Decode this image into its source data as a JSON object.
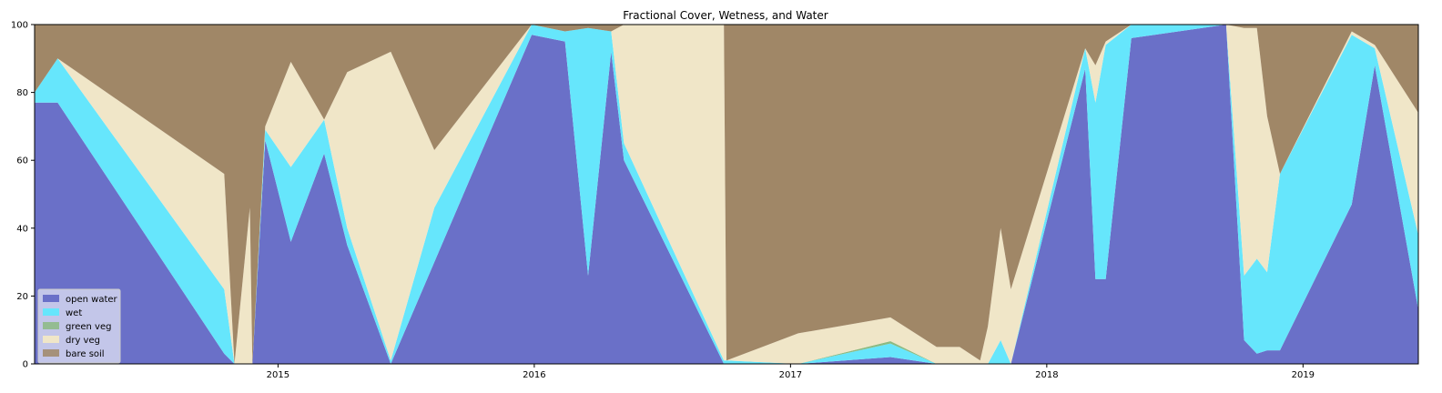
{
  "chart_data": {
    "type": "area",
    "stacked": true,
    "title": "Fractional Cover, Wetness, and Water",
    "xlabel": "",
    "ylabel": "",
    "xlim": [
      2014.05,
      2019.45
    ],
    "ylim": [
      0,
      100
    ],
    "x_ticks": [
      2015,
      2016,
      2017,
      2018,
      2019
    ],
    "x_tick_labels": [
      "2015",
      "2016",
      "2017",
      "2018",
      "2019"
    ],
    "y_ticks": [
      0,
      20,
      40,
      60,
      80,
      100
    ],
    "y_tick_labels": [
      "0",
      "20",
      "40",
      "60",
      "80",
      "100"
    ],
    "legend_position": "lower-left",
    "x": [
      2014.05,
      2014.14,
      2014.79,
      2014.83,
      2014.89,
      2014.9,
      2014.95,
      2015.05,
      2015.18,
      2015.27,
      2015.44,
      2015.61,
      2015.99,
      2016.12,
      2016.21,
      2016.3,
      2016.35,
      2016.74,
      2016.75,
      2017.03,
      2017.39,
      2017.57,
      2017.66,
      2017.74,
      2017.77,
      2017.82,
      2017.86,
      2018.15,
      2018.19,
      2018.23,
      2018.33,
      2018.7,
      2018.77,
      2018.82,
      2018.86,
      2018.91,
      2019.19,
      2019.28,
      2019.45
    ],
    "series": [
      {
        "name": "open water",
        "color": "#6a70c8",
        "values": [
          77,
          77,
          3,
          0,
          0,
          0,
          66,
          36,
          62,
          35,
          0,
          30,
          97,
          95,
          26,
          92,
          60,
          0,
          0,
          0,
          2,
          0,
          0,
          0,
          0,
          0,
          0,
          87,
          25,
          25,
          96,
          100,
          7,
          3,
          4,
          4,
          47,
          88,
          16
        ]
      },
      {
        "name": "wet",
        "color": "#66e6fc",
        "values": [
          3,
          13,
          19,
          0,
          0,
          0,
          3,
          22,
          10,
          5,
          1,
          16,
          3,
          3,
          73,
          6,
          5,
          1,
          1,
          0,
          4,
          0,
          0,
          0,
          0,
          7,
          0,
          6,
          52,
          69,
          4,
          0,
          19,
          28,
          23,
          52,
          50,
          5,
          22
        ]
      },
      {
        "name": "green veg",
        "color": "#8cba82",
        "values": [
          0,
          0,
          0,
          0,
          0,
          0,
          0,
          0,
          0,
          0,
          0,
          0,
          0,
          0,
          0,
          0,
          0,
          0,
          0,
          0,
          0.7,
          0,
          0,
          0,
          0,
          0,
          0,
          0,
          0,
          0,
          0,
          0,
          0,
          0,
          0,
          0,
          0,
          0,
          0
        ]
      },
      {
        "name": "dry veg",
        "color": "#f0e6c8",
        "values": [
          0,
          0,
          34,
          0,
          46,
          0,
          1,
          31,
          0,
          46,
          91,
          17,
          0,
          0,
          0,
          0,
          35,
          99,
          0,
          9,
          7,
          5,
          5,
          1,
          11,
          33,
          22,
          0,
          11,
          1,
          0,
          0,
          73,
          68,
          46,
          0,
          1,
          1,
          36
        ]
      },
      {
        "name": "bare soil",
        "color": "#a08767",
        "values": [
          20,
          10,
          44,
          100,
          54,
          100,
          30,
          11,
          28,
          14,
          8,
          37,
          0,
          2,
          1,
          2,
          0,
          0,
          99,
          91,
          86.3,
          95,
          95,
          99,
          89,
          60,
          78,
          7,
          12,
          5,
          0,
          0,
          1,
          1,
          27,
          44,
          2,
          6,
          26
        ]
      }
    ]
  }
}
